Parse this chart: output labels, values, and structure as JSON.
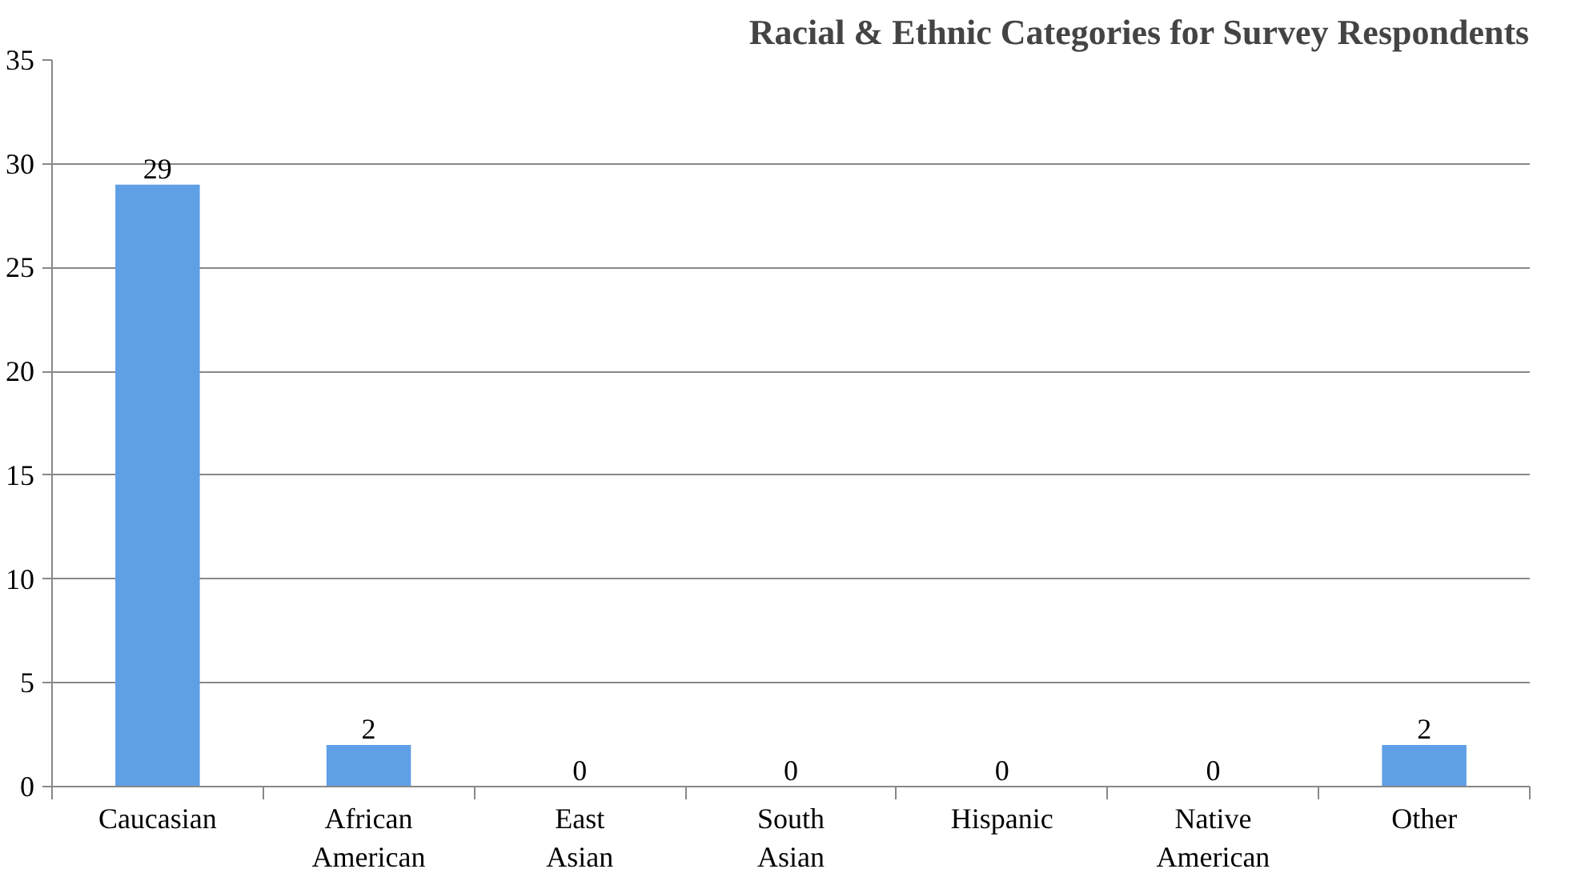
{
  "chart_data": {
    "type": "bar",
    "title": "Racial & Ethnic Categories for Survey Respondents",
    "categories": [
      "Caucasian",
      "African American",
      "East Asian",
      "South Asian",
      "Hispanic",
      "Native American",
      "Other"
    ],
    "values": [
      29,
      2,
      0,
      0,
      0,
      0,
      2
    ],
    "color": "#5f9fe6",
    "ylim": [
      0,
      35
    ],
    "yticks": [
      0,
      5,
      10,
      15,
      20,
      25,
      30,
      35
    ],
    "grid": "y",
    "data_labels": true
  }
}
